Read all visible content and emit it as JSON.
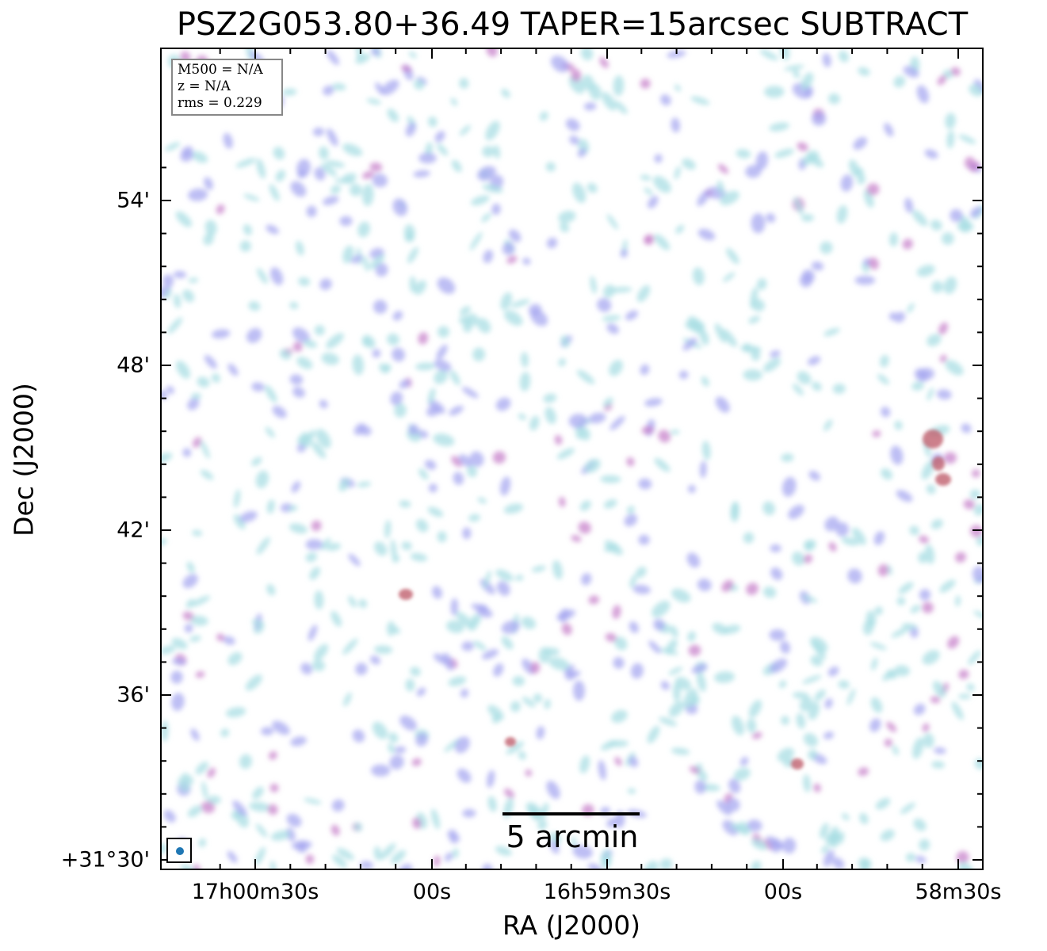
{
  "title": "PSZ2G053.80+36.49 TAPER=15arcsec SUBTRACT",
  "xlabel": "RA (J2000)",
  "ylabel": "Dec (J2000)",
  "yticks": [
    "54'",
    "48'",
    "42'",
    "36'",
    "+31°30'"
  ],
  "xticks": [
    "17h00m30s",
    "00s",
    "16h59m30s",
    "00s",
    "58m30s"
  ],
  "info": {
    "line1": "M500 = N/A",
    "line2": "z = N/A",
    "line3": "rms = 0.229"
  },
  "scalebar": {
    "label": "5 arcmin"
  },
  "colors": {
    "background": "#ffffff",
    "noise_low": "#a8dde3",
    "noise_mid": "#a7a8f0",
    "noise_high": "#c47bc7",
    "source": "#c0606e",
    "beam": "#1f77b4",
    "frame": "#000000"
  }
}
